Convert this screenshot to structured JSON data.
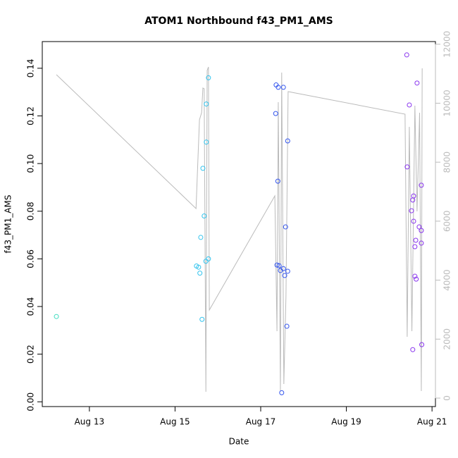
{
  "chart_data": {
    "type": "scatter",
    "title": "ATOM1 Northbound f43_PM1_AMS",
    "x_label": "Date",
    "y_label": "f43_PM1_AMS",
    "xlim": [
      11.9,
      21.08
    ],
    "xticks": [
      {
        "value": 13,
        "label": "Aug 13"
      },
      {
        "value": 15,
        "label": "Aug 15"
      },
      {
        "value": 17,
        "label": "Aug 17"
      },
      {
        "value": 19,
        "label": "Aug 19"
      },
      {
        "value": 21,
        "label": "Aug 21"
      }
    ],
    "ylim": [
      -0.002,
      0.1512
    ],
    "yticks": [
      {
        "value": 0,
        "label": "0.00"
      },
      0.02,
      0.04,
      0.06,
      0.08,
      {
        "value": 0.1,
        "label": "0.10"
      },
      0.12,
      0.14
    ],
    "y2lim": [
      -287,
      12090
    ],
    "y2ticks": [
      0,
      2000,
      4000,
      6000,
      8000,
      10000,
      12000
    ],
    "y2_color": "#bbbbbb",
    "series": [
      {
        "type": "line",
        "axis": "y2",
        "color": "#bbbbbb",
        "x": [
          12.23,
          15.49,
          15.57,
          15.62,
          15.65,
          15.68,
          15.72,
          15.75,
          15.78,
          15.8,
          17.33,
          17.38,
          17.41,
          17.46,
          17.49,
          17.54,
          17.59,
          17.64,
          20.37,
          20.42,
          20.47,
          20.53,
          20.6,
          20.65,
          20.71,
          20.75,
          20.77
        ],
        "values": [
          10968,
          6428,
          9438,
          9677,
          10514,
          10490,
          215,
          11111,
          11230,
          2987,
          6858,
          2270,
          10036,
          239,
          11040,
          478,
          3465,
          10394,
          9629,
          2079,
          9199,
          2270,
          9916,
          6332,
          9677,
          239,
          11182
        ]
      },
      {
        "type": "scatter",
        "color": "#3fdcc0",
        "x": [
          12.23
        ],
        "values": [
          0.0358
        ]
      },
      {
        "type": "scatter",
        "color": "#33c4ee",
        "x": [
          15.78,
          15.73,
          15.73,
          15.65,
          15.68,
          15.6,
          15.78,
          15.72,
          15.5,
          15.55,
          15.58,
          15.63
        ],
        "values": [
          0.136,
          0.125,
          0.109,
          0.098,
          0.078,
          0.069,
          0.06,
          0.059,
          0.057,
          0.0565,
          0.054,
          0.0346
        ]
      },
      {
        "type": "scatter",
        "color": "#3355ee",
        "x": [
          17.36,
          17.41,
          17.53,
          17.35,
          17.63,
          17.4,
          17.58,
          17.38,
          17.43,
          17.53,
          17.46,
          17.63,
          17.56,
          17.61,
          17.49
        ],
        "values": [
          0.133,
          0.132,
          0.132,
          0.121,
          0.1095,
          0.0926,
          0.0734,
          0.0574,
          0.0571,
          0.0559,
          0.0551,
          0.0548,
          0.053,
          0.0317,
          0.0038
        ]
      },
      {
        "type": "scatter",
        "color": "#8833ee",
        "x": [
          20.41,
          20.47,
          20.65,
          20.42,
          20.75,
          20.57,
          20.55,
          20.52,
          20.57,
          20.7,
          20.75,
          20.62,
          20.75,
          20.6,
          20.6,
          20.63,
          20.76,
          20.55
        ],
        "values": [
          0.1456,
          0.1246,
          0.1338,
          0.0986,
          0.0909,
          0.0864,
          0.0847,
          0.0802,
          0.0758,
          0.0734,
          0.0719,
          0.0678,
          0.0666,
          0.0651,
          0.0527,
          0.0515,
          0.024,
          0.0219
        ]
      }
    ]
  }
}
